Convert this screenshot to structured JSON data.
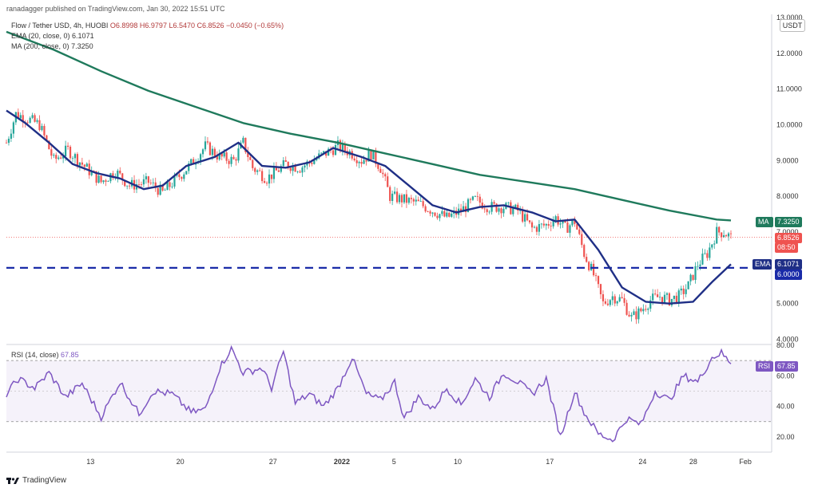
{
  "header": {
    "publisher": "ranadagger published on TradingView.com, Jan 30, 2022 15:51 UTC",
    "symbol_line": "Flow / Tether USD, 4h, HUOBI",
    "ohlc": "O6.8998  H6.9797  L6.5470  C6.8526  −0.0450 (−0.65%)",
    "ema_label": "EMA (20, close, 0)",
    "ema_value": "6.1071",
    "ma_label": "MA (200, close, 0)",
    "ma_value": "7.3250",
    "currency": "USDT"
  },
  "badges": {
    "ma": {
      "label": "MA",
      "value": "7.3250"
    },
    "price": {
      "value": "6.8526",
      "countdown": "08:50"
    },
    "ema": {
      "label": "EMA",
      "value": "6.1071"
    },
    "level": {
      "value": "6.0000"
    },
    "rsi": {
      "label": "RSI",
      "value": "67.85"
    }
  },
  "rsi_header": {
    "label": "RSI (14, close)",
    "value": "67.85"
  },
  "footer": {
    "brand": "TradingView"
  },
  "colors": {
    "up": "#26a69a",
    "down": "#ef5350",
    "ema": "#1f2f86",
    "ma": "#1f7a5c",
    "rsi": "#7e57c2",
    "level": "#1a2ba8",
    "price_line": "#ef5350"
  },
  "chart_data": {
    "type": "candlestick",
    "price_axis": {
      "ticks": [
        "4.0000",
        "5.0000",
        "6.0000",
        "7.0000",
        "8.0000",
        "9.0000",
        "10.0000",
        "11.0000",
        "12.0000",
        "13.0000"
      ],
      "ylim": [
        3.9,
        13.0
      ]
    },
    "time_axis": {
      "ticks": [
        "13",
        "20",
        "27",
        "2022",
        "5",
        "10",
        "17",
        "24",
        "28",
        "Feb"
      ]
    },
    "support_level": 6.0,
    "last_price": 6.8526,
    "ema20": [
      [
        0,
        10.4
      ],
      [
        8,
        10.05
      ],
      [
        18,
        9.5
      ],
      [
        28,
        8.9
      ],
      [
        38,
        8.65
      ],
      [
        48,
        8.5
      ],
      [
        58,
        8.2
      ],
      [
        66,
        8.3
      ],
      [
        76,
        8.85
      ],
      [
        88,
        9.1
      ],
      [
        98,
        9.5
      ],
      [
        108,
        8.85
      ],
      [
        118,
        8.8
      ],
      [
        128,
        8.95
      ],
      [
        138,
        9.35
      ],
      [
        150,
        9.1
      ],
      [
        160,
        8.85
      ],
      [
        170,
        8.3
      ],
      [
        180,
        7.75
      ],
      [
        190,
        7.55
      ],
      [
        200,
        7.7
      ],
      [
        210,
        7.75
      ],
      [
        222,
        7.55
      ],
      [
        232,
        7.3
      ],
      [
        240,
        7.35
      ],
      [
        250,
        6.5
      ],
      [
        260,
        5.45
      ],
      [
        270,
        5.05
      ],
      [
        280,
        5.0
      ],
      [
        290,
        5.05
      ],
      [
        298,
        5.6
      ],
      [
        306,
        6.1
      ]
    ],
    "ma200": [
      [
        0,
        12.6
      ],
      [
        20,
        12.1
      ],
      [
        40,
        11.5
      ],
      [
        60,
        10.95
      ],
      [
        80,
        10.5
      ],
      [
        100,
        10.05
      ],
      [
        120,
        9.75
      ],
      [
        140,
        9.5
      ],
      [
        160,
        9.2
      ],
      [
        180,
        8.9
      ],
      [
        200,
        8.6
      ],
      [
        220,
        8.4
      ],
      [
        240,
        8.2
      ],
      [
        260,
        7.9
      ],
      [
        280,
        7.6
      ],
      [
        300,
        7.35
      ],
      [
        306,
        7.325
      ]
    ],
    "rsi": {
      "ylim": [
        10,
        80
      ],
      "ticks": [
        "20.00",
        "40.00",
        "60.00",
        "80.00"
      ],
      "bands": [
        30,
        70
      ],
      "last": 67.85,
      "series": [
        [
          0,
          48
        ],
        [
          5,
          58
        ],
        [
          12,
          52
        ],
        [
          18,
          62
        ],
        [
          25,
          46
        ],
        [
          32,
          55
        ],
        [
          40,
          33
        ],
        [
          48,
          56
        ],
        [
          56,
          35
        ],
        [
          62,
          50
        ],
        [
          70,
          48
        ],
        [
          78,
          36
        ],
        [
          84,
          38
        ],
        [
          90,
          65
        ],
        [
          95,
          78
        ],
        [
          100,
          62
        ],
        [
          108,
          65
        ],
        [
          112,
          52
        ],
        [
          117,
          76
        ],
        [
          122,
          42
        ],
        [
          128,
          48
        ],
        [
          134,
          40
        ],
        [
          140,
          52
        ],
        [
          146,
          72
        ],
        [
          152,
          48
        ],
        [
          158,
          44
        ],
        [
          164,
          56
        ],
        [
          168,
          32
        ],
        [
          174,
          46
        ],
        [
          180,
          38
        ],
        [
          186,
          52
        ],
        [
          192,
          41
        ],
        [
          198,
          58
        ],
        [
          204,
          46
        ],
        [
          210,
          62
        ],
        [
          216,
          56
        ],
        [
          222,
          48
        ],
        [
          228,
          58
        ],
        [
          234,
          20
        ],
        [
          240,
          50
        ],
        [
          244,
          36
        ],
        [
          250,
          22
        ],
        [
          256,
          18
        ],
        [
          262,
          32
        ],
        [
          268,
          28
        ],
        [
          274,
          50
        ],
        [
          280,
          44
        ],
        [
          286,
          60
        ],
        [
          292,
          56
        ],
        [
          298,
          72
        ],
        [
          302,
          75
        ],
        [
          306,
          67.85
        ]
      ]
    }
  }
}
